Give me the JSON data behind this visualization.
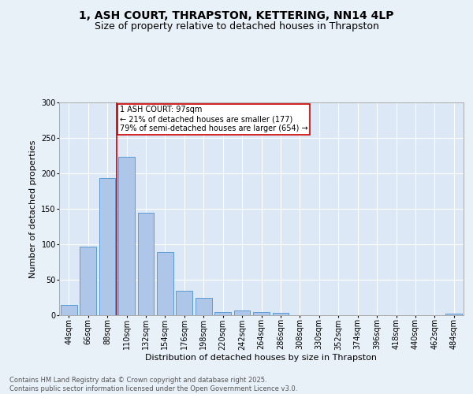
{
  "title_line1": "1, ASH COURT, THRAPSTON, KETTERING, NN14 4LP",
  "title_line2": "Size of property relative to detached houses in Thrapston",
  "xlabel": "Distribution of detached houses by size in Thrapston",
  "ylabel": "Number of detached properties",
  "footer": "Contains HM Land Registry data © Crown copyright and database right 2025.\nContains public sector information licensed under the Open Government Licence v3.0.",
  "bin_labels": [
    "44sqm",
    "66sqm",
    "88sqm",
    "110sqm",
    "132sqm",
    "154sqm",
    "176sqm",
    "198sqm",
    "220sqm",
    "242sqm",
    "264sqm",
    "286sqm",
    "308sqm",
    "330sqm",
    "352sqm",
    "374sqm",
    "396sqm",
    "418sqm",
    "440sqm",
    "462sqm",
    "484sqm"
  ],
  "bar_values": [
    15,
    97,
    193,
    223,
    144,
    89,
    34,
    25,
    4,
    7,
    4,
    3,
    0,
    0,
    0,
    0,
    0,
    0,
    0,
    0,
    2
  ],
  "bar_color": "#aec6e8",
  "bar_edge_color": "#5b9bd5",
  "annotation_text": "1 ASH COURT: 97sqm\n← 21% of detached houses are smaller (177)\n79% of semi-detached houses are larger (654) →",
  "vline_x": 2.5,
  "vline_color": "#cc0000",
  "box_edge_color": "#cc0000",
  "ylim": [
    0,
    300
  ],
  "yticks": [
    0,
    50,
    100,
    150,
    200,
    250,
    300
  ],
  "bg_color": "#e8f0f8",
  "plot_bg_color": "#dce8f5",
  "title_fontsize": 10,
  "subtitle_fontsize": 9,
  "axis_label_fontsize": 8,
  "tick_fontsize": 7,
  "annotation_fontsize": 7,
  "footer_fontsize": 6
}
